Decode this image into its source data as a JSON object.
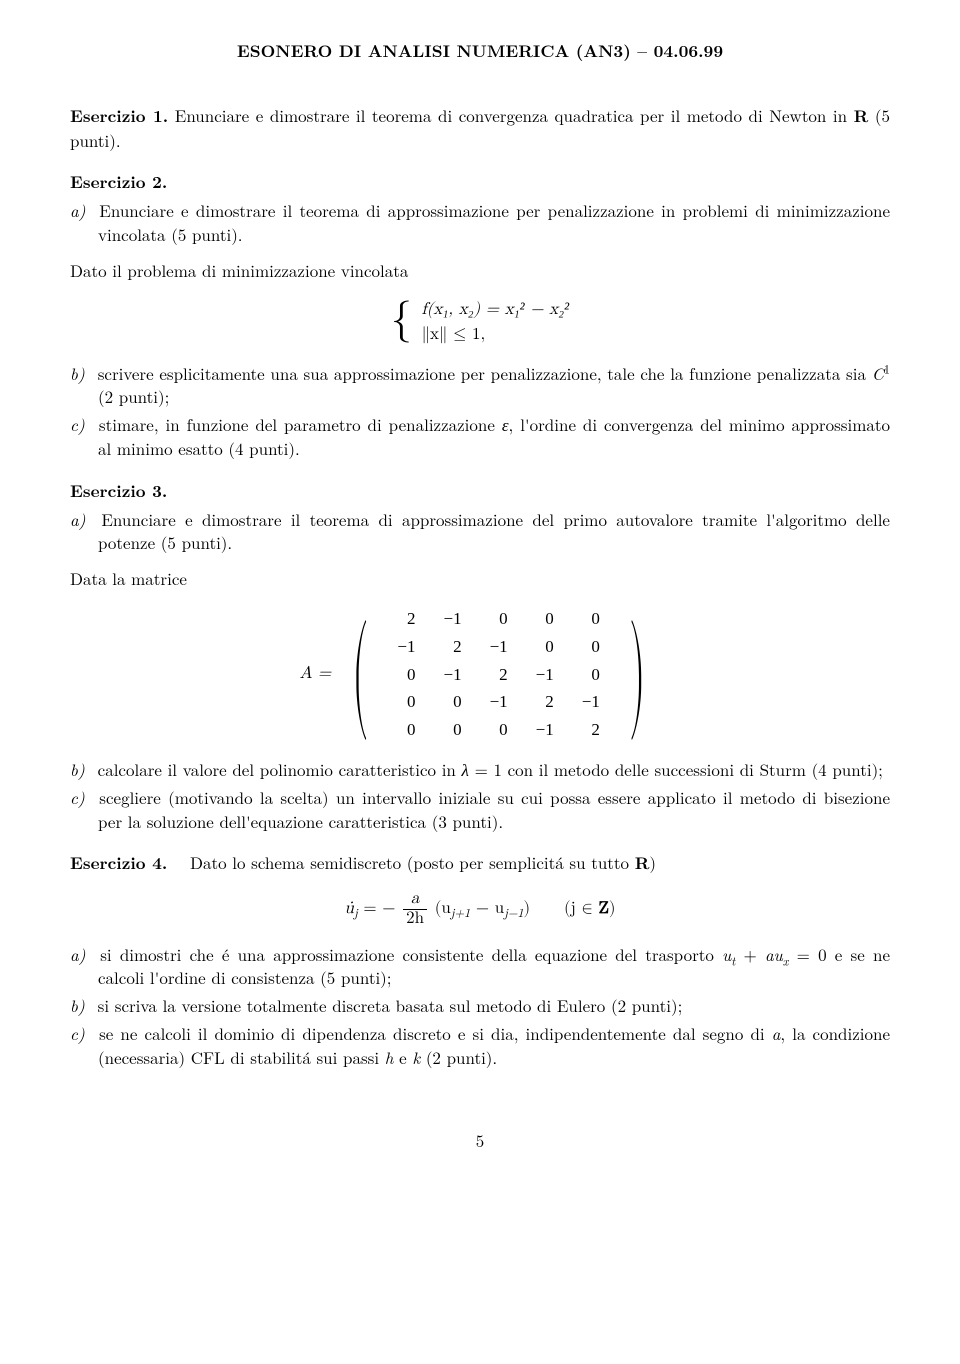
{
  "title": "ESONERO DI ANALISI NUMERICA (AN3) – 04.06.99",
  "ex1": {
    "head": "Esercizio 1.",
    "body": "Enunciare e dimostrare il teorema di convergenza quadratica per il metodo di Newton in ",
    "boldR": "R",
    "tail": " (5 punti)."
  },
  "ex2": {
    "head": "Esercizio 2.",
    "a_label": "a)",
    "a": " Enunciare e dimostrare il teorema di approssimazione per penalizzazione in problemi di minimizzazione vincolata (5 punti).",
    "intro": "Dato il problema di minimizzazione vincolata",
    "case1": "f(x₁, x₂) = x₁² − x₂²",
    "case2": "∥x∥ ≤ 1,",
    "b_label": "b)",
    "b_pre": " scrivere esplicitamente una sua approssimazione per penalizzazione, tale che la funzione penalizzata sia ",
    "b_C": "C",
    "b_exp": "1",
    "b_post": " (2 punti);",
    "c_label": "c)",
    "c_pre": " stimare, in funzione del parametro di penalizzazione ",
    "c_eps": "ε",
    "c_post": ", l'ordine di convergenza del minimo approssimato al minimo esatto (4 punti)."
  },
  "ex3": {
    "head": "Esercizio 3.",
    "a_label": "a)",
    "a": " Enunciare e dimostrare il teorema di approssimazione del primo autovalore tramite l'algoritmo delle potenze (5 punti).",
    "intro": "Data la matrice",
    "A_eq": "A = ",
    "matrix": [
      [
        "2",
        "−1",
        "0",
        "0",
        "0"
      ],
      [
        "−1",
        "2",
        "−1",
        "0",
        "0"
      ],
      [
        "0",
        "−1",
        "2",
        "−1",
        "0"
      ],
      [
        "0",
        "0",
        "−1",
        "2",
        "−1"
      ],
      [
        "0",
        "0",
        "0",
        "−1",
        "2"
      ]
    ],
    "b_label": "b)",
    "b_pre": " calcolare il valore del polinomio caratteristico in ",
    "b_lam": "λ",
    "b_mid": " = 1 con il metodo delle successioni di Sturm (4 punti);",
    "c_label": "c)",
    "c": " scegliere (motivando la scelta) un intervallo iniziale su cui possa essere applicato il metodo di bisezione per la soluzione dell'equazione caratteristica (3 punti)."
  },
  "ex4": {
    "head": "Esercizio 4.",
    "lead": "Dato lo schema semidiscreto (posto per semplicitá su tutto ",
    "boldR": "R",
    "lead_close": ")",
    "eq_lhs_u": "u̇",
    "eq_lhs_j": "j",
    "eq_eq": " = −",
    "frac_num": "a",
    "frac_den": "2h",
    "eq_open": "(u",
    "eq_jp1": "j+1",
    "eq_minus": " − u",
    "eq_jm1": "j−1",
    "eq_close": ")",
    "eq_jspace": "(j ∈ ",
    "eq_boldZ": "Z",
    "eq_endparen": ")",
    "a_label": "a)",
    "a_pre": " si dimostri che é una approssimazione consistente della equazione del trasporto ",
    "a_ut": "u",
    "a_t": "t",
    "a_plus": " + ",
    "a_au_a": "au",
    "a_x": "x",
    "a_post": " = 0 e se ne calcoli l'ordine di consistenza (5 punti);",
    "b_label": "b)",
    "b": " si scriva la versione totalmente discreta basata sul metodo di Eulero (2 punti);",
    "c_label": "c)",
    "c_pre": " se ne calcoli il dominio di dipendenza discreto e si dia, indipendentemente dal segno di ",
    "c_a": "a",
    "c_mid": ", la condizione (necessaria) CFL di stabilitá sui passi ",
    "c_h": "h",
    "c_and": " e ",
    "c_k": "k",
    "c_post": " (2 punti)."
  },
  "pagenum": "5"
}
